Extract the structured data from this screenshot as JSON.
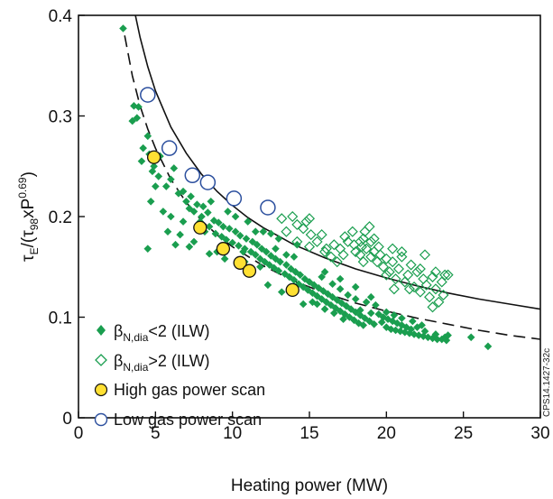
{
  "chart_data": {
    "type": "scatter",
    "ylabel": "τE/(τ98xP0.69)",
    "ylabel_parts": {
      "main": "τ",
      "sub1": "E",
      "mid": "/(τ",
      "sub2": "98",
      "mid2": "xP",
      "sup": "0.69",
      "end": ")"
    },
    "xlabel": "Heating power (MW)",
    "xlim": [
      0,
      30
    ],
    "ylim": [
      0,
      0.4
    ],
    "x_ticks": [
      "0",
      "5",
      "10",
      "15",
      "20",
      "25",
      "30"
    ],
    "y_ticks": [
      "0",
      "0.1",
      "0.2",
      "0.3",
      "0.4"
    ],
    "side_label": "CPS14.1427-32c",
    "legend_position": "bottom-left",
    "series": [
      {
        "name": "βN,dia<2 (ILW)",
        "label_parts": {
          "main": "β",
          "sub": "N,dia",
          "rest": "<2 (ILW)"
        },
        "marker": "filled-diamond",
        "color": "#1a9e4f",
        "points": [
          [
            2.9,
            0.387
          ],
          [
            3.6,
            0.31
          ],
          [
            3.9,
            0.309
          ],
          [
            3.8,
            0.298
          ],
          [
            3.5,
            0.295
          ],
          [
            4.5,
            0.28
          ],
          [
            4.2,
            0.268
          ],
          [
            4.6,
            0.262
          ],
          [
            4.1,
            0.255
          ],
          [
            4.8,
            0.245
          ],
          [
            5.2,
            0.24
          ],
          [
            5.0,
            0.23
          ],
          [
            5.7,
            0.23
          ],
          [
            6.2,
            0.248
          ],
          [
            6.0,
            0.237
          ],
          [
            6.8,
            0.225
          ],
          [
            6.5,
            0.223
          ],
          [
            7.3,
            0.22
          ],
          [
            7.0,
            0.215
          ],
          [
            7.7,
            0.212
          ],
          [
            7.2,
            0.208
          ],
          [
            8.1,
            0.21
          ],
          [
            7.5,
            0.205
          ],
          [
            8.4,
            0.204
          ],
          [
            8.0,
            0.2
          ],
          [
            8.8,
            0.196
          ],
          [
            7.9,
            0.195
          ],
          [
            9.1,
            0.194
          ],
          [
            8.5,
            0.19
          ],
          [
            9.4,
            0.19
          ],
          [
            8.2,
            0.185
          ],
          [
            9.8,
            0.188
          ],
          [
            8.9,
            0.183
          ],
          [
            10.2,
            0.185
          ],
          [
            9.3,
            0.18
          ],
          [
            10.5,
            0.181
          ],
          [
            9.6,
            0.177
          ],
          [
            10.9,
            0.178
          ],
          [
            10.0,
            0.174
          ],
          [
            11.3,
            0.175
          ],
          [
            10.4,
            0.171
          ],
          [
            11.6,
            0.172
          ],
          [
            10.8,
            0.168
          ],
          [
            11.9,
            0.168
          ],
          [
            11.2,
            0.165
          ],
          [
            12.2,
            0.165
          ],
          [
            11.5,
            0.162
          ],
          [
            12.5,
            0.161
          ],
          [
            11.8,
            0.158
          ],
          [
            12.8,
            0.158
          ],
          [
            12.1,
            0.155
          ],
          [
            13.1,
            0.155
          ],
          [
            12.4,
            0.152
          ],
          [
            13.5,
            0.152
          ],
          [
            12.7,
            0.149
          ],
          [
            13.8,
            0.148
          ],
          [
            13.0,
            0.146
          ],
          [
            14.1,
            0.145
          ],
          [
            13.4,
            0.143
          ],
          [
            14.4,
            0.142
          ],
          [
            13.7,
            0.14
          ],
          [
            14.7,
            0.138
          ],
          [
            14.0,
            0.137
          ],
          [
            15.0,
            0.135
          ],
          [
            14.3,
            0.133
          ],
          [
            15.3,
            0.132
          ],
          [
            14.6,
            0.13
          ],
          [
            15.6,
            0.129
          ],
          [
            14.9,
            0.127
          ],
          [
            15.9,
            0.126
          ],
          [
            15.2,
            0.124
          ],
          [
            16.2,
            0.123
          ],
          [
            15.5,
            0.121
          ],
          [
            16.5,
            0.12
          ],
          [
            15.8,
            0.118
          ],
          [
            16.8,
            0.117
          ],
          [
            16.1,
            0.115
          ],
          [
            17.1,
            0.114
          ],
          [
            16.4,
            0.112
          ],
          [
            17.4,
            0.111
          ],
          [
            16.7,
            0.109
          ],
          [
            17.7,
            0.108
          ],
          [
            17.0,
            0.106
          ],
          [
            18.0,
            0.105
          ],
          [
            17.3,
            0.103
          ],
          [
            18.3,
            0.102
          ],
          [
            17.6,
            0.1
          ],
          [
            18.6,
            0.099
          ],
          [
            17.9,
            0.097
          ],
          [
            18.9,
            0.096
          ],
          [
            18.2,
            0.094
          ],
          [
            19.2,
            0.093
          ],
          [
            18.5,
            0.092
          ],
          [
            19.5,
            0.103
          ],
          [
            19.8,
            0.1
          ],
          [
            20.1,
            0.098
          ],
          [
            20.4,
            0.096
          ],
          [
            20.7,
            0.094
          ],
          [
            21.0,
            0.092
          ],
          [
            21.3,
            0.09
          ],
          [
            21.6,
            0.088
          ],
          [
            19.7,
            0.095
          ],
          [
            20.0,
            0.09
          ],
          [
            20.3,
            0.088
          ],
          [
            20.6,
            0.087
          ],
          [
            20.9,
            0.086
          ],
          [
            21.2,
            0.085
          ],
          [
            21.5,
            0.084
          ],
          [
            21.8,
            0.083
          ],
          [
            22.1,
            0.082
          ],
          [
            22.4,
            0.081
          ],
          [
            22.7,
            0.08
          ],
          [
            23.0,
            0.079
          ],
          [
            23.3,
            0.078
          ],
          [
            23.6,
            0.078
          ],
          [
            23.9,
            0.077
          ],
          [
            22.0,
            0.09
          ],
          [
            22.5,
            0.086
          ],
          [
            23.2,
            0.083
          ],
          [
            23.8,
            0.08
          ],
          [
            24.0,
            0.082
          ],
          [
            25.5,
            0.08
          ],
          [
            26.6,
            0.071
          ],
          [
            6.0,
            0.2
          ],
          [
            4.7,
            0.215
          ],
          [
            5.8,
            0.185
          ],
          [
            4.5,
            0.168
          ],
          [
            6.3,
            0.172
          ],
          [
            7.2,
            0.17
          ],
          [
            6.6,
            0.182
          ],
          [
            9.0,
            0.165
          ],
          [
            10.7,
            0.165
          ],
          [
            12.3,
            0.132
          ],
          [
            13.2,
            0.125
          ],
          [
            14.6,
            0.113
          ],
          [
            15.5,
            0.113
          ],
          [
            16.0,
            0.108
          ],
          [
            16.6,
            0.104
          ],
          [
            17.2,
            0.098
          ],
          [
            18.3,
            0.107
          ],
          [
            19.0,
            0.104
          ],
          [
            11.0,
            0.195
          ],
          [
            11.5,
            0.185
          ],
          [
            9.7,
            0.205
          ],
          [
            12.0,
            0.185
          ],
          [
            12.8,
            0.168
          ],
          [
            13.5,
            0.162
          ],
          [
            14.2,
            0.172
          ],
          [
            15.2,
            0.115
          ],
          [
            15.8,
            0.14
          ],
          [
            16.5,
            0.133
          ],
          [
            17.0,
            0.128
          ],
          [
            17.5,
            0.122
          ],
          [
            18.0,
            0.118
          ],
          [
            18.7,
            0.115
          ],
          [
            19.3,
            0.112
          ],
          [
            20.0,
            0.105
          ],
          [
            20.5,
            0.102
          ],
          [
            21.0,
            0.099
          ],
          [
            21.7,
            0.096
          ],
          [
            22.3,
            0.092
          ],
          [
            16.0,
            0.145
          ],
          [
            17.0,
            0.138
          ],
          [
            18.0,
            0.13
          ],
          [
            19.0,
            0.12
          ],
          [
            14.0,
            0.16
          ],
          [
            13.0,
            0.178
          ],
          [
            12.5,
            0.183
          ],
          [
            8.6,
            0.215
          ],
          [
            10.2,
            0.2
          ],
          [
            11.8,
            0.15
          ],
          [
            10.8,
            0.155
          ],
          [
            9.5,
            0.158
          ],
          [
            8.5,
            0.163
          ],
          [
            7.5,
            0.175
          ],
          [
            6.8,
            0.195
          ],
          [
            5.5,
            0.205
          ],
          [
            5.3,
            0.26
          ],
          [
            4.9,
            0.25
          ]
        ]
      },
      {
        "name": "βN,dia>2 (ILW)",
        "label_parts": {
          "main": "β",
          "sub": "N,dia",
          "rest": ">2 (ILW)"
        },
        "marker": "open-diamond",
        "color": "#1a9e4f",
        "points": [
          [
            13.2,
            0.198
          ],
          [
            14.2,
            0.192
          ],
          [
            14.6,
            0.188
          ],
          [
            15.1,
            0.182
          ],
          [
            15.0,
            0.17
          ],
          [
            15.5,
            0.175
          ],
          [
            16.1,
            0.168
          ],
          [
            16.4,
            0.16
          ],
          [
            16.8,
            0.155
          ],
          [
            17.0,
            0.168
          ],
          [
            17.3,
            0.18
          ],
          [
            17.5,
            0.175
          ],
          [
            17.8,
            0.185
          ],
          [
            17.9,
            0.172
          ],
          [
            18.3,
            0.162
          ],
          [
            18.4,
            0.17
          ],
          [
            18.5,
            0.178
          ],
          [
            18.6,
            0.185
          ],
          [
            18.7,
            0.168
          ],
          [
            18.9,
            0.19
          ],
          [
            19.0,
            0.175
          ],
          [
            19.2,
            0.165
          ],
          [
            19.4,
            0.155
          ],
          [
            19.6,
            0.162
          ],
          [
            19.8,
            0.15
          ],
          [
            20.0,
            0.158
          ],
          [
            20.2,
            0.145
          ],
          [
            20.4,
            0.155
          ],
          [
            20.6,
            0.138
          ],
          [
            20.8,
            0.148
          ],
          [
            21.0,
            0.16
          ],
          [
            21.2,
            0.135
          ],
          [
            21.4,
            0.142
          ],
          [
            21.6,
            0.152
          ],
          [
            21.8,
            0.13
          ],
          [
            22.0,
            0.145
          ],
          [
            22.2,
            0.125
          ],
          [
            22.4,
            0.138
          ],
          [
            22.6,
            0.132
          ],
          [
            22.8,
            0.12
          ],
          [
            23.0,
            0.14
          ],
          [
            23.2,
            0.128
          ],
          [
            23.4,
            0.115
          ],
          [
            23.6,
            0.135
          ],
          [
            23.8,
            0.142
          ],
          [
            23.2,
            0.145
          ],
          [
            22.5,
            0.162
          ],
          [
            20.5,
            0.128
          ],
          [
            21.0,
            0.165
          ],
          [
            17.2,
            0.162
          ],
          [
            15.8,
            0.182
          ],
          [
            14.8,
            0.195
          ],
          [
            13.9,
            0.2
          ],
          [
            15.0,
            0.198
          ],
          [
            16.0,
            0.165
          ],
          [
            16.6,
            0.172
          ],
          [
            18.0,
            0.165
          ],
          [
            18.3,
            0.175
          ],
          [
            19.2,
            0.178
          ],
          [
            19.5,
            0.17
          ],
          [
            20.0,
            0.142
          ],
          [
            21.5,
            0.128
          ],
          [
            23.0,
            0.11
          ],
          [
            14.2,
            0.175
          ],
          [
            13.5,
            0.185
          ],
          [
            22.2,
            0.148
          ],
          [
            20.4,
            0.168
          ],
          [
            19.0,
            0.16
          ],
          [
            24.0,
            0.142
          ],
          [
            23.7,
            0.122
          ],
          [
            18.5,
            0.155
          ]
        ]
      },
      {
        "name": "High gas power scan",
        "marker": "filled-circle",
        "color": "#ffe033",
        "edge": "#111111",
        "points": [
          [
            4.9,
            0.259
          ],
          [
            7.9,
            0.189
          ],
          [
            9.4,
            0.168
          ],
          [
            10.5,
            0.154
          ],
          [
            11.1,
            0.146
          ],
          [
            13.9,
            0.127
          ]
        ]
      },
      {
        "name": "Low gas power scan",
        "marker": "open-circle",
        "color": "#2b4f9e",
        "points": [
          [
            4.5,
            0.321
          ],
          [
            5.9,
            0.268
          ],
          [
            7.4,
            0.241
          ],
          [
            8.4,
            0.234
          ],
          [
            10.1,
            0.218
          ],
          [
            12.3,
            0.209
          ]
        ]
      }
    ],
    "curves": [
      {
        "style": "solid",
        "color": "#111111",
        "x": [
          3.7,
          4,
          4.5,
          5,
          6,
          7,
          8,
          9,
          10,
          11,
          12,
          14,
          16,
          18,
          20,
          22,
          24,
          26,
          28,
          30
        ],
        "y": [
          0.4,
          0.378,
          0.349,
          0.325,
          0.289,
          0.263,
          0.242,
          0.225,
          0.211,
          0.199,
          0.189,
          0.172,
          0.159,
          0.148,
          0.139,
          0.131,
          0.124,
          0.118,
          0.113,
          0.108
        ]
      },
      {
        "style": "dashed",
        "color": "#111111",
        "x": [
          3.0,
          3.5,
          4,
          4.5,
          5,
          6,
          7,
          8,
          9,
          10,
          12,
          14,
          16,
          18,
          20,
          22,
          24,
          26,
          28,
          30
        ],
        "y": [
          0.38,
          0.34,
          0.31,
          0.287,
          0.268,
          0.237,
          0.214,
          0.196,
          0.182,
          0.17,
          0.151,
          0.136,
          0.124,
          0.114,
          0.106,
          0.099,
          0.093,
          0.087,
          0.082,
          0.078
        ]
      }
    ]
  }
}
